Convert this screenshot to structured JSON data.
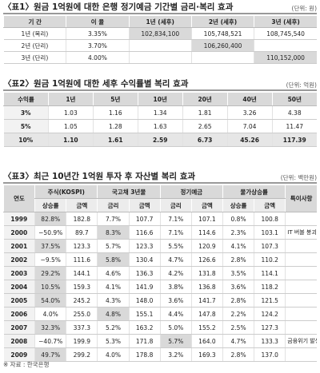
{
  "table1": {
    "title": "〈표1〉원금 1억원에 대한 은행 정기예금 기간별 금리·복리 효과",
    "unit": "(단위: 원)",
    "header": [
      "기 간",
      "이 율",
      "1년 (세후)",
      "2년 (세후)",
      "3년 (세후)"
    ],
    "rows": [
      [
        "1년 (복리)",
        "3.35%",
        "102,834,100",
        "105,748,521",
        "108,745,540"
      ],
      [
        "2년 (단리)",
        "3.70%",
        null,
        "106,260,400",
        null
      ],
      [
        "3년 (단리)",
        "4.00%",
        null,
        null,
        "110,152,000"
      ]
    ]
  },
  "table2": {
    "title": "〈표2〉원금 1억원에 대한 세후 수익률별 복리 효과",
    "unit": "(단위: 억원)",
    "header": [
      "수익률",
      "1년",
      "5년",
      "10년",
      "20년",
      "40년",
      "50년"
    ],
    "rows": [
      [
        "3%",
        "1.03",
        "1.16",
        "1.34",
        "1.81",
        "3.26",
        "4.38"
      ],
      [
        "5%",
        "1.05",
        "1.28",
        "1.63",
        "2.65",
        "7.04",
        "11.47"
      ],
      [
        "10%",
        "1.10",
        "1.61",
        "2.59",
        "6.73",
        "45.26",
        "117.39"
      ]
    ]
  },
  "table3": {
    "title": "〈표3〉최근 10년간 1억원 투자 후 자산별 복리 효과",
    "unit": "(단위: 백만원)",
    "header": [
      "연도",
      "주식(KOSPI)",
      "국고채 3년물",
      "정기예금",
      "물가상승률",
      "특이사항"
    ],
    "subheader": [
      "상승률",
      "금액",
      "금리",
      "금액",
      "금리",
      "금액",
      "상승률",
      "금액"
    ],
    "rows": [
      [
        "1999",
        "82.8%",
        "182.8",
        "7.7%",
        "107.7",
        "7.1%",
        "107.1",
        "0.8%",
        "100.8",
        null
      ],
      [
        "2000",
        "−50.9%",
        "89.7",
        "8.3%",
        "116.6",
        "7.1%",
        "114.6",
        "2.3%",
        "103.1",
        "IT 버블 붕괴"
      ],
      [
        "2001",
        "37.5%",
        "123.3",
        "5.7%",
        "123.3",
        "5.5%",
        "120.9",
        "4.1%",
        "107.3",
        null
      ],
      [
        "2002",
        "−9.5%",
        "111.6",
        "5.8%",
        "130.4",
        "4.7%",
        "126.6",
        "2.8%",
        "110.2",
        null
      ],
      [
        "2003",
        "29.2%",
        "144.1",
        "4.6%",
        "136.3",
        "4.2%",
        "131.8",
        "3.5%",
        "114.1",
        null
      ],
      [
        "2004",
        "10.5%",
        "159.3",
        "4.1%",
        "141.9",
        "3.8%",
        "136.8",
        "3.6%",
        "118.2",
        null
      ],
      [
        "2005",
        "54.0%",
        "245.2",
        "4.3%",
        "148.0",
        "3.6%",
        "141.7",
        "2.8%",
        "121.5",
        null
      ],
      [
        "2006",
        "4.0%",
        "255.0",
        "4.8%",
        "155.1",
        "4.4%",
        "147.8",
        "2.2%",
        "124.2",
        null
      ],
      [
        "2007",
        "32.3%",
        "337.3",
        "5.2%",
        "163.2",
        "5.0%",
        "155.2",
        "2.5%",
        "127.3",
        null
      ],
      [
        "2008",
        "−40.7%",
        "199.9",
        "5.3%",
        "171.8",
        "5.7%",
        "164.0",
        "4.7%",
        "133.3",
        "금융위기 발생"
      ],
      [
        "2009",
        "49.7%",
        "299.2",
        "4.0%",
        "178.8",
        "3.2%",
        "169.3",
        "2.8%",
        "137.0",
        null
      ]
    ]
  },
  "footer": "※ 자료 : 한국은행"
}
